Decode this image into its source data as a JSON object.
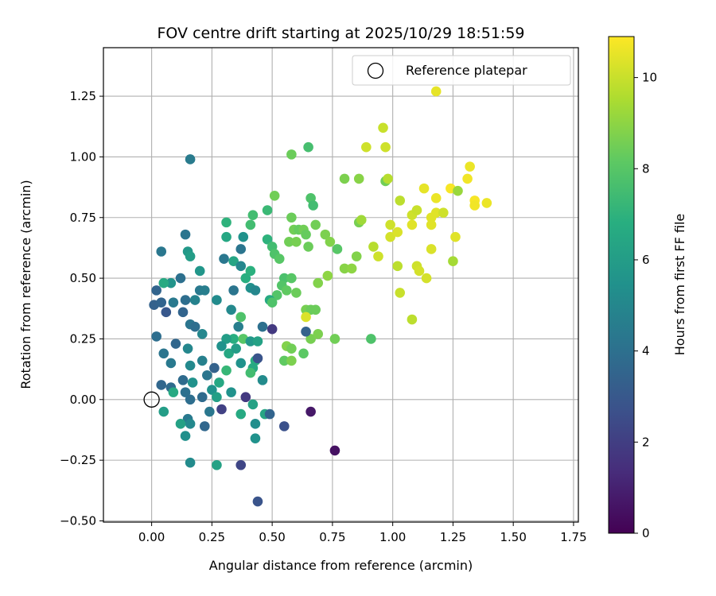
{
  "chart_data": {
    "type": "scatter",
    "title": "FOV centre drift starting at 2025/10/29 18:51:59",
    "xlabel": "Angular distance from reference (arcmin)",
    "ylabel": "Rotation from reference (arcmin)",
    "xlim": [
      -0.2,
      1.77
    ],
    "ylim": [
      -0.505,
      1.45
    ],
    "xticks": [
      0.0,
      0.25,
      0.5,
      0.75,
      1.0,
      1.25,
      1.5,
      1.75
    ],
    "xtick_labels": [
      "0.00",
      "0.25",
      "0.50",
      "0.75",
      "1.00",
      "1.25",
      "1.50",
      "1.75"
    ],
    "yticks": [
      -0.5,
      -0.25,
      0.0,
      0.25,
      0.5,
      0.75,
      1.0,
      1.25
    ],
    "ytick_labels": [
      "−0.50",
      "−0.25",
      "0.00",
      "0.25",
      "0.50",
      "0.75",
      "1.00",
      "1.25"
    ],
    "grid": true,
    "legend": {
      "position": "top-right",
      "entries": [
        {
          "label": "Reference platepar",
          "marker": "open-circle"
        }
      ]
    },
    "reference_point": {
      "x": 0.0,
      "y": 0.0
    },
    "colorbar": {
      "label": "Hours from first FF file",
      "range": [
        0,
        10.9
      ],
      "ticks": [
        0,
        2,
        4,
        6,
        8,
        10
      ],
      "tick_labels": [
        "0",
        "2",
        "4",
        "6",
        "8",
        "10"
      ],
      "colormap": "viridis"
    },
    "points": [
      [
        0.16,
        0.99,
        4.5
      ],
      [
        0.14,
        0.68,
        4.2
      ],
      [
        0.04,
        0.61,
        4.3
      ],
      [
        0.15,
        0.61,
        5.8
      ],
      [
        0.12,
        0.5,
        4.0
      ],
      [
        0.08,
        0.48,
        5.6
      ],
      [
        0.05,
        0.48,
        6.6
      ],
      [
        0.02,
        0.45,
        3.5
      ],
      [
        0.01,
        0.39,
        3.4
      ],
      [
        0.04,
        0.4,
        3.5
      ],
      [
        0.06,
        0.36,
        3.0
      ],
      [
        0.09,
        0.4,
        4.4
      ],
      [
        0.14,
        0.41,
        3.9
      ],
      [
        0.18,
        0.41,
        4.8
      ],
      [
        0.2,
        0.45,
        4.4
      ],
      [
        0.22,
        0.45,
        4.6
      ],
      [
        0.2,
        0.53,
        5.7
      ],
      [
        0.16,
        0.59,
        6.0
      ],
      [
        0.13,
        0.36,
        3.5
      ],
      [
        0.16,
        0.31,
        4.2
      ],
      [
        0.18,
        0.3,
        3.9
      ],
      [
        0.21,
        0.27,
        5.0
      ],
      [
        0.02,
        0.26,
        3.9
      ],
      [
        0.05,
        0.19,
        4.2
      ],
      [
        0.1,
        0.23,
        3.6
      ],
      [
        0.15,
        0.21,
        5.0
      ],
      [
        0.08,
        0.15,
        4.4
      ],
      [
        0.16,
        0.14,
        5.1
      ],
      [
        0.21,
        0.16,
        4.7
      ],
      [
        0.23,
        0.1,
        4.2
      ],
      [
        0.26,
        0.13,
        3.4
      ],
      [
        0.13,
        0.08,
        3.8
      ],
      [
        0.17,
        0.07,
        5.5
      ],
      [
        0.04,
        0.06,
        3.6
      ],
      [
        0.08,
        0.05,
        3.8
      ],
      [
        0.09,
        0.03,
        6.6
      ],
      [
        0.14,
        0.03,
        4.0
      ],
      [
        0.16,
        0.0,
        3.9
      ],
      [
        0.21,
        0.01,
        3.8
      ],
      [
        0.24,
        -0.05,
        4.3
      ],
      [
        0.15,
        -0.08,
        4.4
      ],
      [
        0.16,
        -0.1,
        5.1
      ],
      [
        0.12,
        -0.1,
        6.2
      ],
      [
        0.14,
        -0.15,
        5.4
      ],
      [
        0.22,
        -0.11,
        3.6
      ],
      [
        0.16,
        -0.26,
        5.2
      ],
      [
        0.27,
        -0.27,
        6.2
      ],
      [
        0.05,
        -0.05,
        6.0
      ],
      [
        0.3,
        0.58,
        4.3
      ],
      [
        0.31,
        0.67,
        6.5
      ],
      [
        0.31,
        0.73,
        7.0
      ],
      [
        0.34,
        0.57,
        6.4
      ],
      [
        0.37,
        0.62,
        4.2
      ],
      [
        0.38,
        0.67,
        5.5
      ],
      [
        0.41,
        0.72,
        7.5
      ],
      [
        0.42,
        0.76,
        7.5
      ],
      [
        0.37,
        0.55,
        5.0
      ],
      [
        0.34,
        0.45,
        4.2
      ],
      [
        0.39,
        0.5,
        6.8
      ],
      [
        0.41,
        0.46,
        5.4
      ],
      [
        0.43,
        0.45,
        5.0
      ],
      [
        0.41,
        0.53,
        6.9
      ],
      [
        0.27,
        0.41,
        5.2
      ],
      [
        0.33,
        0.37,
        5.1
      ],
      [
        0.36,
        0.3,
        4.6
      ],
      [
        0.37,
        0.34,
        7.8
      ],
      [
        0.34,
        0.25,
        6.8
      ],
      [
        0.31,
        0.25,
        6.0
      ],
      [
        0.29,
        0.22,
        5.5
      ],
      [
        0.32,
        0.19,
        6.5
      ],
      [
        0.35,
        0.21,
        6.0
      ],
      [
        0.38,
        0.25,
        8.0
      ],
      [
        0.41,
        0.24,
        5.8
      ],
      [
        0.44,
        0.24,
        6.2
      ],
      [
        0.46,
        0.3,
        4.0
      ],
      [
        0.43,
        0.16,
        6.8
      ],
      [
        0.42,
        0.13,
        6.6
      ],
      [
        0.41,
        0.11,
        7.5
      ],
      [
        0.44,
        0.17,
        2.8
      ],
      [
        0.37,
        0.15,
        5.5
      ],
      [
        0.31,
        0.12,
        7.2
      ],
      [
        0.28,
        0.07,
        6.5
      ],
      [
        0.25,
        0.04,
        5.5
      ],
      [
        0.33,
        0.03,
        5.5
      ],
      [
        0.27,
        0.01,
        6.1
      ],
      [
        0.29,
        -0.04,
        2.1
      ],
      [
        0.39,
        0.01,
        1.8
      ],
      [
        0.42,
        -0.02,
        6.2
      ],
      [
        0.47,
        -0.06,
        6.4
      ],
      [
        0.46,
        0.08,
        5.2
      ],
      [
        0.37,
        -0.06,
        6.6
      ],
      [
        0.43,
        -0.1,
        5.3
      ],
      [
        0.43,
        -0.16,
        5.5
      ],
      [
        0.49,
        -0.06,
        3.5
      ],
      [
        0.55,
        -0.11,
        2.7
      ],
      [
        0.37,
        -0.27,
        2.3
      ],
      [
        0.44,
        -0.42,
        2.8
      ],
      [
        0.5,
        0.29,
        1.8
      ],
      [
        0.66,
        -0.05,
        0.7
      ],
      [
        0.76,
        -0.21,
        0.5
      ],
      [
        0.48,
        0.78,
        7.3
      ],
      [
        0.48,
        0.66,
        7.0
      ],
      [
        0.5,
        0.63,
        7.5
      ],
      [
        0.51,
        0.6,
        7.8
      ],
      [
        0.53,
        0.58,
        8.0
      ],
      [
        0.51,
        0.84,
        8.5
      ],
      [
        0.55,
        0.5,
        7.7
      ],
      [
        0.54,
        0.47,
        7.9
      ],
      [
        0.52,
        0.43,
        7.9
      ],
      [
        0.49,
        0.41,
        6.6
      ],
      [
        0.5,
        0.4,
        7.8
      ],
      [
        0.56,
        0.45,
        8.2
      ],
      [
        0.58,
        0.5,
        8.0
      ],
      [
        0.6,
        0.44,
        8.4
      ],
      [
        0.57,
        0.65,
        8.5
      ],
      [
        0.59,
        0.7,
        8.5
      ],
      [
        0.6,
        0.65,
        8.6
      ],
      [
        0.61,
        0.7,
        8.3
      ],
      [
        0.58,
        0.75,
        8.4
      ],
      [
        0.63,
        0.7,
        8.5
      ],
      [
        0.64,
        0.68,
        8.3
      ],
      [
        0.65,
        0.63,
        8.4
      ],
      [
        0.66,
        0.83,
        7.8
      ],
      [
        0.67,
        0.8,
        7.5
      ],
      [
        0.68,
        0.72,
        8.5
      ],
      [
        0.72,
        0.68,
        8.7
      ],
      [
        0.74,
        0.65,
        8.8
      ],
      [
        0.77,
        0.62,
        8.0
      ],
      [
        0.65,
        1.04,
        7.6
      ],
      [
        0.58,
        1.01,
        8.4
      ],
      [
        0.64,
        0.37,
        8.6
      ],
      [
        0.66,
        0.37,
        8.4
      ],
      [
        0.68,
        0.37,
        8.4
      ],
      [
        0.69,
        0.48,
        8.8
      ],
      [
        0.73,
        0.51,
        9.0
      ],
      [
        0.56,
        0.22,
        8.8
      ],
      [
        0.58,
        0.21,
        8.5
      ],
      [
        0.55,
        0.16,
        8.2
      ],
      [
        0.58,
        0.16,
        8.7
      ],
      [
        0.63,
        0.19,
        8.1
      ],
      [
        0.66,
        0.25,
        8.6
      ],
      [
        0.69,
        0.27,
        8.7
      ],
      [
        0.76,
        0.25,
        8.5
      ],
      [
        0.64,
        0.28,
        3.4
      ],
      [
        0.64,
        0.34,
        10.3
      ],
      [
        0.8,
        0.91,
        8.7
      ],
      [
        0.86,
        0.91,
        8.9
      ],
      [
        0.8,
        0.54,
        8.9
      ],
      [
        0.83,
        0.54,
        9.0
      ],
      [
        0.85,
        0.59,
        8.8
      ],
      [
        0.86,
        0.73,
        8.6
      ],
      [
        0.87,
        0.74,
        9.3
      ],
      [
        0.91,
        0.25,
        7.8
      ],
      [
        0.89,
        1.04,
        10.1
      ],
      [
        0.96,
        1.12,
        10.0
      ],
      [
        0.97,
        1.04,
        10.1
      ],
      [
        0.97,
        0.9,
        8.5
      ],
      [
        0.98,
        0.91,
        9.7
      ],
      [
        0.92,
        0.63,
        9.7
      ],
      [
        0.94,
        0.59,
        10.1
      ],
      [
        0.99,
        0.72,
        10.1
      ],
      [
        0.99,
        0.67,
        10.2
      ],
      [
        1.02,
        0.69,
        10.3
      ],
      [
        1.02,
        0.55,
        9.8
      ],
      [
        1.03,
        0.82,
        9.8
      ],
      [
        1.03,
        0.44,
        10.0
      ],
      [
        1.08,
        0.76,
        10.1
      ],
      [
        1.08,
        0.72,
        10.4
      ],
      [
        1.08,
        0.33,
        9.8
      ],
      [
        1.1,
        0.78,
        10.0
      ],
      [
        1.1,
        0.55,
        10.1
      ],
      [
        1.11,
        0.53,
        10.2
      ],
      [
        1.13,
        0.87,
        10.5
      ],
      [
        1.14,
        0.5,
        10.2
      ],
      [
        1.16,
        0.72,
        10.4
      ],
      [
        1.16,
        0.75,
        10.4
      ],
      [
        1.16,
        0.62,
        10.3
      ],
      [
        1.18,
        0.83,
        10.6
      ],
      [
        1.18,
        0.77,
        10.4
      ],
      [
        1.21,
        0.77,
        10.1
      ],
      [
        1.18,
        1.27,
        10.5
      ],
      [
        1.24,
        0.87,
        10.8
      ],
      [
        1.27,
        0.86,
        9.2
      ],
      [
        1.26,
        0.67,
        10.4
      ],
      [
        1.25,
        0.57,
        9.4
      ],
      [
        1.31,
        0.91,
        10.7
      ],
      [
        1.32,
        0.96,
        10.6
      ],
      [
        1.34,
        0.82,
        10.8
      ],
      [
        1.34,
        0.8,
        10.7
      ],
      [
        1.39,
        0.81,
        10.6
      ]
    ]
  }
}
